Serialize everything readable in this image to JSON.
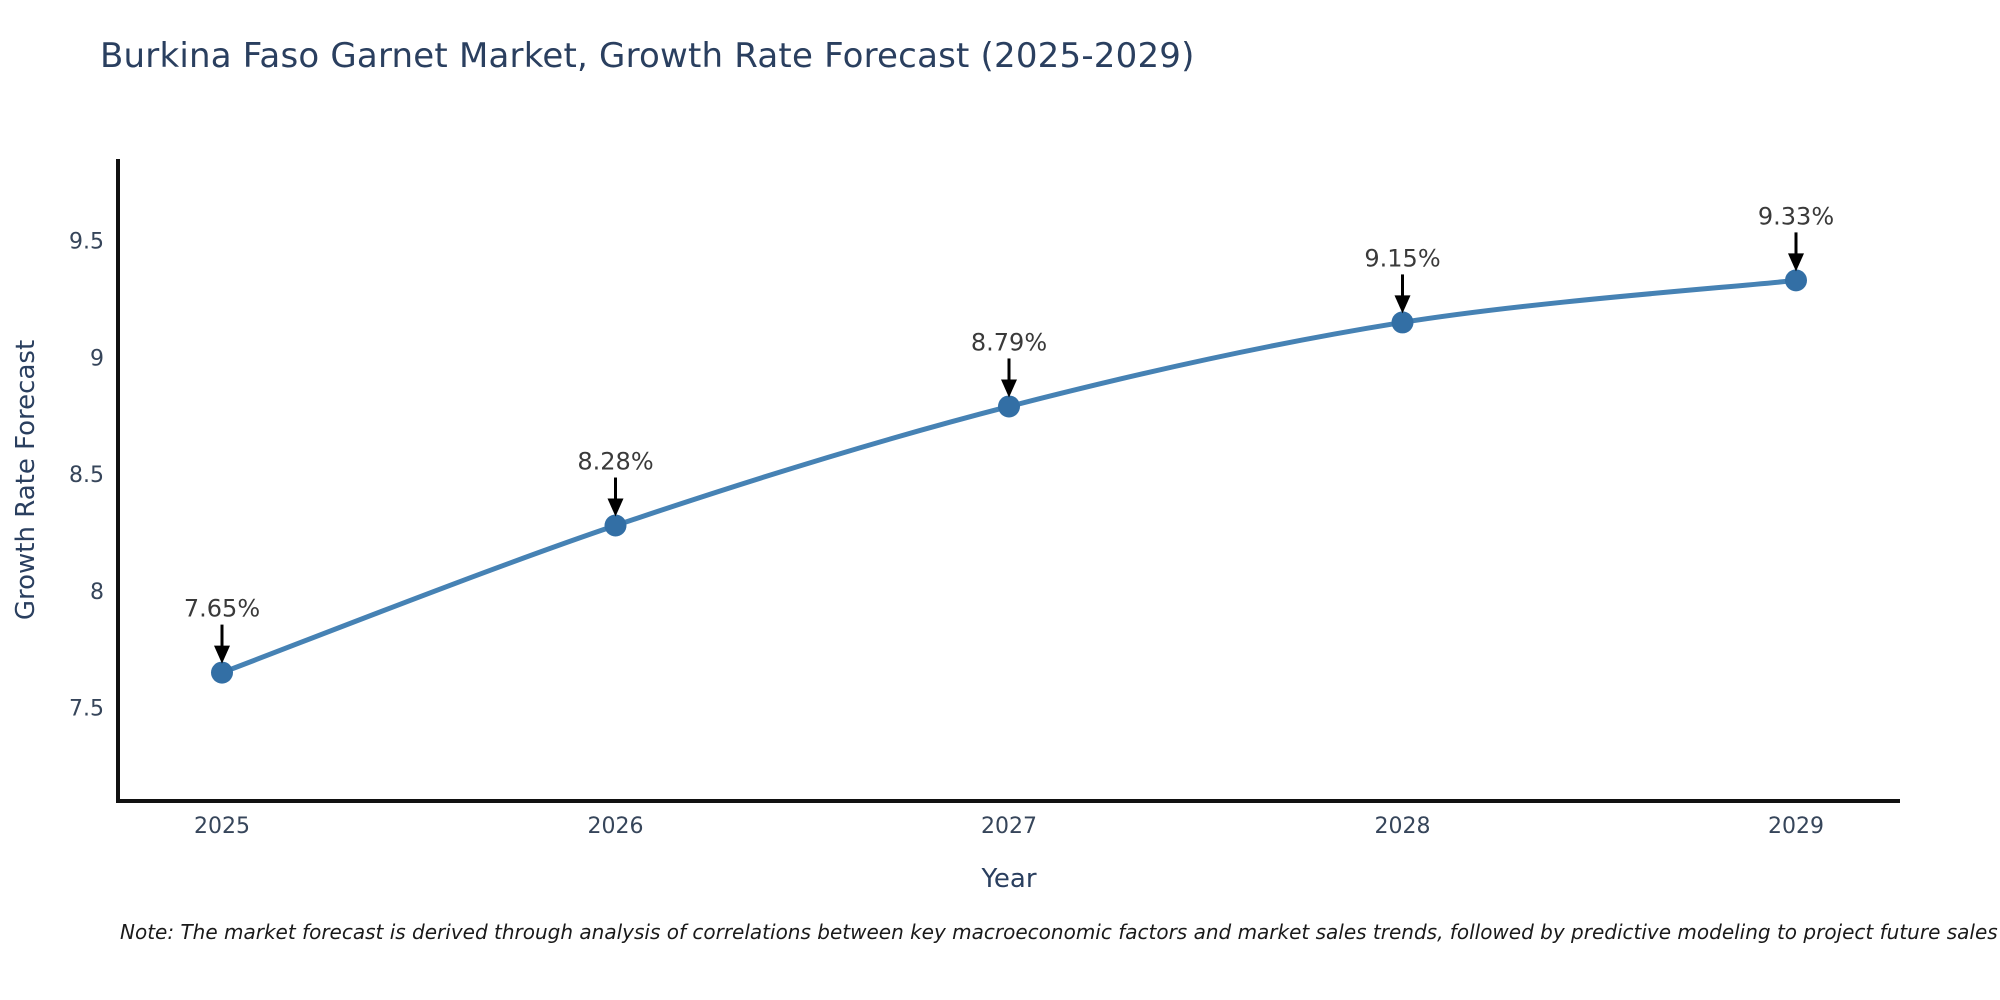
{
  "note": "Note: The market forecast is derived through analysis of correlations between key macroeconomic factors and market sales trends, followed by predictive modeling to project future sales",
  "chart_data": {
    "type": "line",
    "title": "Burkina Faso Garnet Market, Growth Rate Forecast (2025-2029)",
    "xlabel": "Year",
    "ylabel": "Growth Rate Forecast",
    "categories": [
      "2025",
      "2026",
      "2027",
      "2028",
      "2029"
    ],
    "series": [
      {
        "name": "Growth Rate Forecast",
        "values": [
          7.65,
          8.28,
          8.79,
          9.15,
          9.33
        ],
        "data_labels": [
          "7.65%",
          "8.28%",
          "8.79%",
          "9.15%",
          "9.33%"
        ]
      }
    ],
    "ylim": [
      7.1,
      9.85
    ],
    "yticks": [
      7.5,
      8.0,
      8.5,
      9.0,
      9.5
    ],
    "ytick_labels": [
      "7.5",
      "8",
      "8.5",
      "9",
      "9.5"
    ],
    "grid": false,
    "legend": "none",
    "colors": {
      "line": "#4682b4",
      "marker": "#336fa5",
      "axis": "#111111",
      "tick_label": "#36455a",
      "title": "#2a3f5f",
      "annotation_text": "#3a3a3a",
      "annotation_arrow": "#000000",
      "background": "#ffffff"
    }
  }
}
